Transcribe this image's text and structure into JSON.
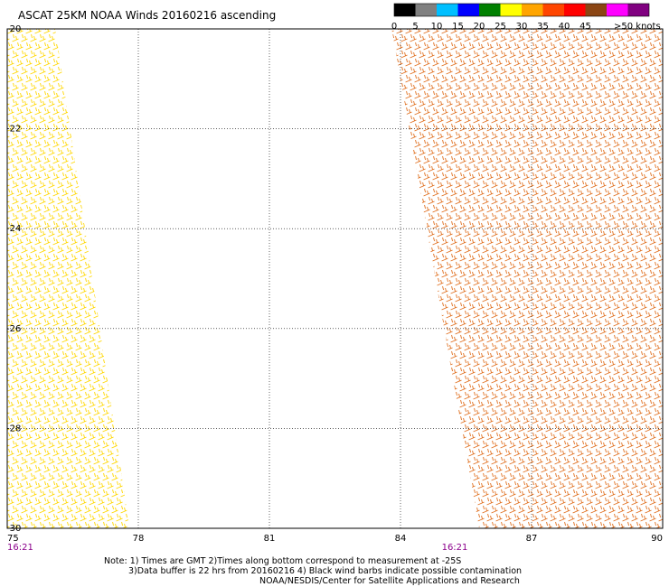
{
  "title": "ASCAT 25KM NOAA Winds 20160216 ascending",
  "legend": {
    "labels": [
      "0",
      "5",
      "10",
      "15",
      "20",
      "25",
      "30",
      "35",
      "40",
      "45",
      ">50 knots"
    ],
    "colors": [
      "#000000",
      "#808080",
      "#00bfff",
      "#0000ff",
      "#008000",
      "#ffff00",
      "#ffa500",
      "#ff4500",
      "#ff0000",
      "#8b4513",
      "#ff00ff",
      "#800080"
    ]
  },
  "axes": {
    "lat_labels": [
      "-20",
      "-22",
      "-24",
      "-26",
      "-28",
      "-30"
    ],
    "lon_labels": [
      "75",
      "78",
      "81",
      "84",
      "87",
      "90"
    ],
    "lat_range": [
      -30,
      -20
    ],
    "lon_range": [
      75,
      90
    ]
  },
  "times": [
    "16:21",
    "16:21"
  ],
  "notes": {
    "line1": "Note: 1) Times are GMT 2)Times along bottom correspond to measurement at -25S",
    "line2": "3)Data buffer is 22 hrs from 20160216 4) Black wind barbs indicate possible contamination",
    "line3": "NOAA/NESDIS/Center for Satellite Applications and Research"
  },
  "swaths": [
    {
      "name": "west-swath",
      "dominant_speed_knots": 20,
      "color": "#ffd700",
      "lon_lat_edges": [
        [
          75.0,
          -20.0
        ],
        [
          76.1,
          -20.0
        ],
        [
          77.8,
          -30.0
        ],
        [
          75.0,
          -30.0
        ]
      ]
    },
    {
      "name": "east-swath",
      "dominant_speed_knots": 30,
      "color": "#e07020",
      "lon_lat_edges": [
        [
          83.8,
          -20.0
        ],
        [
          90.0,
          -20.0
        ],
        [
          90.0,
          -30.0
        ],
        [
          85.8,
          -30.0
        ]
      ]
    }
  ]
}
